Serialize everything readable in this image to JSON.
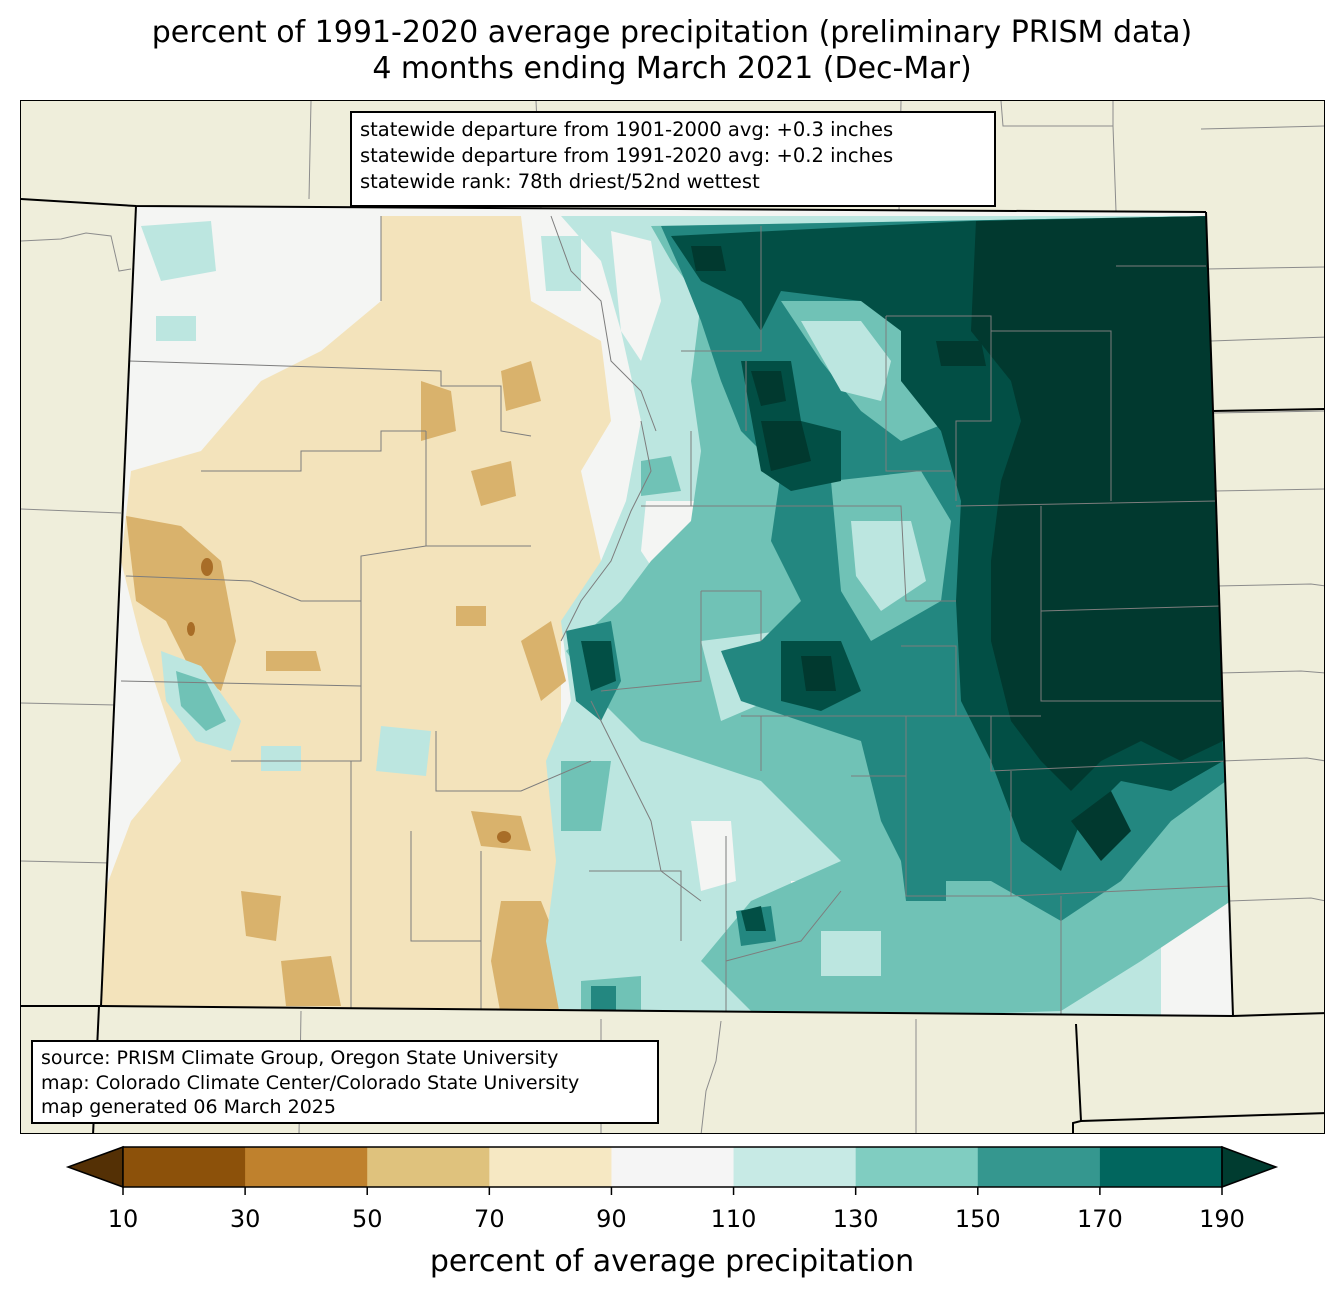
{
  "title_line1": "percent of 1991-2020 average precipitation (preliminary PRISM data)",
  "title_line2": "4 months ending March 2021 (Dec-Mar)",
  "stats": {
    "line1": "statewide departure from 1901-2000 avg: +0.3 inches",
    "line2": "statewide departure from 1991-2020 avg: +0.2 inches",
    "line3": "statewide rank: 78th driest/52nd wettest"
  },
  "source": {
    "line1": "source: PRISM Climate Group, Oregon State University",
    "line2": "map: Colorado Climate Center/Colorado State University",
    "line3": "map generated 06 March 2025"
  },
  "colorbar": {
    "label": "percent of average precipitation",
    "ticks": [
      "10",
      "30",
      "50",
      "70",
      "90",
      "110",
      "130",
      "150",
      "170",
      "190"
    ],
    "colors": [
      "#543005",
      "#8c510a",
      "#bf812d",
      "#dfc27d",
      "#f6e8c3",
      "#f5f5f5",
      "#c7eae5",
      "#80cdc1",
      "#35978f",
      "#01665e",
      "#003c30"
    ]
  },
  "map_colors": {
    "background": "#efeedb",
    "class_70_90": "#f3e3bb",
    "class_50_70": "#d9b26c",
    "class_30_50": "#a86d27",
    "class_90_110": "#f4f5f3",
    "class_110_130": "#bce6e0",
    "class_130_150": "#70c2b6",
    "class_150_170": "#238780",
    "class_170_190": "#024f45",
    "class_gt190": "#01392f"
  }
}
